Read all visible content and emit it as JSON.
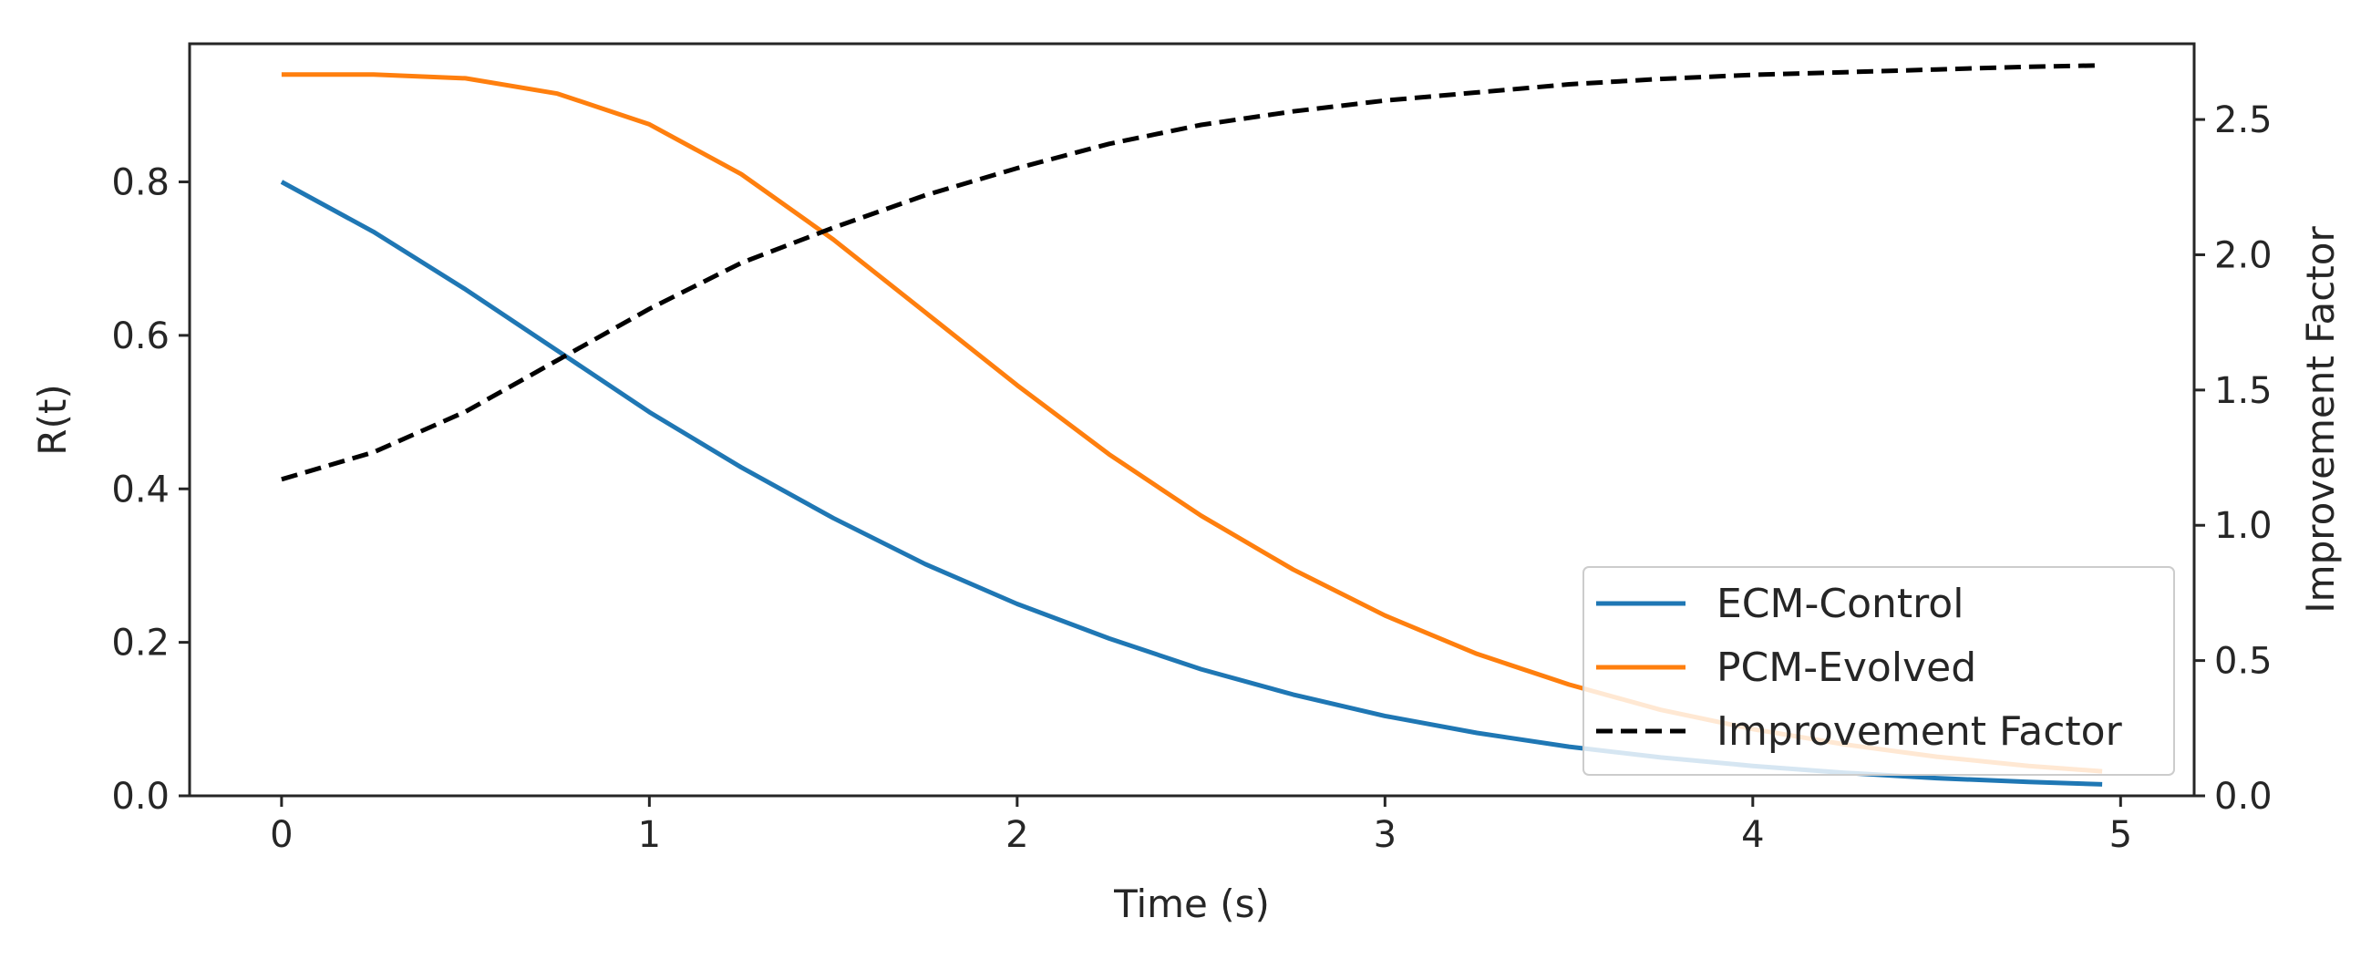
{
  "chart_data": {
    "type": "line",
    "title": "",
    "xlabel": "Time (s)",
    "ylabel": "R(t)",
    "y2label": "Improvement Factor",
    "xlim": [
      -0.25,
      5.2
    ],
    "ylim": [
      0,
      0.98
    ],
    "y2lim": [
      0,
      2.78
    ],
    "xticks": [
      0,
      1,
      2,
      3,
      4,
      5
    ],
    "xtick_labels": [
      "0",
      "1",
      "2",
      "3",
      "4",
      "5"
    ],
    "yticks": [
      0.0,
      0.2,
      0.4,
      0.6,
      0.8
    ],
    "ytick_labels": [
      "0.0",
      "0.2",
      "0.4",
      "0.6",
      "0.8"
    ],
    "y2ticks": [
      0.0,
      0.5,
      1.0,
      1.5,
      2.0,
      2.5
    ],
    "y2tick_labels": [
      "0.0",
      "0.5",
      "1.0",
      "1.5",
      "2.0",
      "2.5"
    ],
    "grid": false,
    "legend_position": "bottom-right",
    "x": [
      0,
      0.25,
      0.5,
      0.75,
      1.0,
      1.25,
      1.5,
      1.75,
      2.0,
      2.25,
      2.5,
      2.75,
      3.0,
      3.25,
      3.5,
      3.75,
      4.0,
      4.25,
      4.5,
      4.75,
      4.95
    ],
    "series": [
      {
        "name": "ECM-Control",
        "axis": "left",
        "color": "#1f77b4",
        "style": "solid",
        "values": [
          0.8,
          0.735,
          0.66,
          0.58,
          0.5,
          0.428,
          0.362,
          0.302,
          0.25,
          0.205,
          0.165,
          0.132,
          0.104,
          0.082,
          0.064,
          0.05,
          0.039,
          0.03,
          0.023,
          0.018,
          0.015
        ]
      },
      {
        "name": "PCM-Evolved",
        "axis": "left",
        "color": "#ff7f0e",
        "style": "solid",
        "values": [
          0.94,
          0.94,
          0.935,
          0.915,
          0.875,
          0.81,
          0.725,
          0.63,
          0.535,
          0.445,
          0.365,
          0.295,
          0.235,
          0.185,
          0.145,
          0.112,
          0.087,
          0.067,
          0.051,
          0.039,
          0.032
        ]
      },
      {
        "name": "Improvement Factor",
        "axis": "right",
        "color": "#000000",
        "style": "dashed",
        "values": [
          1.17,
          1.27,
          1.42,
          1.61,
          1.8,
          1.97,
          2.1,
          2.22,
          2.32,
          2.41,
          2.48,
          2.53,
          2.57,
          2.6,
          2.63,
          2.65,
          2.665,
          2.675,
          2.685,
          2.695,
          2.7
        ]
      }
    ]
  }
}
